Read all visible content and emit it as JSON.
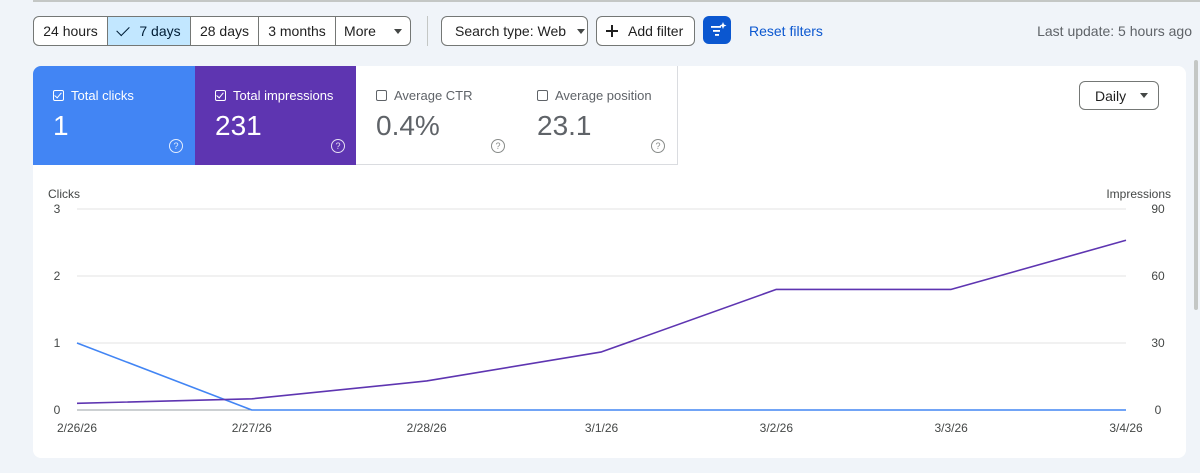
{
  "toolbar": {
    "ranges": [
      {
        "label": "24 hours",
        "selected": false
      },
      {
        "label": "7 days",
        "selected": true
      },
      {
        "label": "28 days",
        "selected": false
      },
      {
        "label": "3 months",
        "selected": false
      },
      {
        "label": "More",
        "selected": false
      }
    ],
    "search_type_label": "Search type: Web",
    "add_filter_label": "Add filter",
    "reset_filters_label": "Reset filters",
    "last_update": "Last update: 5 hours ago",
    "filter_icon": "filter-sparkle-icon"
  },
  "metrics": {
    "clicks": {
      "label": "Total clicks",
      "value": "1",
      "checked": true,
      "color": "#4285f4"
    },
    "impressions": {
      "label": "Total impressions",
      "value": "231",
      "checked": true,
      "color": "#5e35b1"
    },
    "ctr": {
      "label": "Average CTR",
      "value": "0.4%",
      "checked": false
    },
    "position": {
      "label": "Average position",
      "value": "23.1",
      "checked": false
    }
  },
  "granularity": "Daily",
  "chart_data": {
    "type": "line",
    "x": [
      "2/26/26",
      "2/27/26",
      "2/28/26",
      "3/1/26",
      "3/2/26",
      "3/3/26",
      "3/4/26"
    ],
    "left_axis": {
      "label": "Clicks",
      "ticks": [
        "0",
        "1",
        "2",
        "3"
      ],
      "range": [
        0,
        3
      ]
    },
    "right_axis": {
      "label": "Impressions",
      "ticks": [
        "0",
        "30",
        "60",
        "90"
      ],
      "range": [
        0,
        90
      ]
    },
    "series": [
      {
        "name": "Total clicks",
        "axis": "left",
        "color": "#4285f4",
        "values": [
          1,
          0,
          0,
          0,
          0,
          0,
          0
        ]
      },
      {
        "name": "Total impressions",
        "axis": "right",
        "color": "#5e35b1",
        "values": [
          3,
          5,
          13,
          26,
          54,
          54,
          76
        ]
      }
    ],
    "grid": true,
    "legend": "none"
  }
}
